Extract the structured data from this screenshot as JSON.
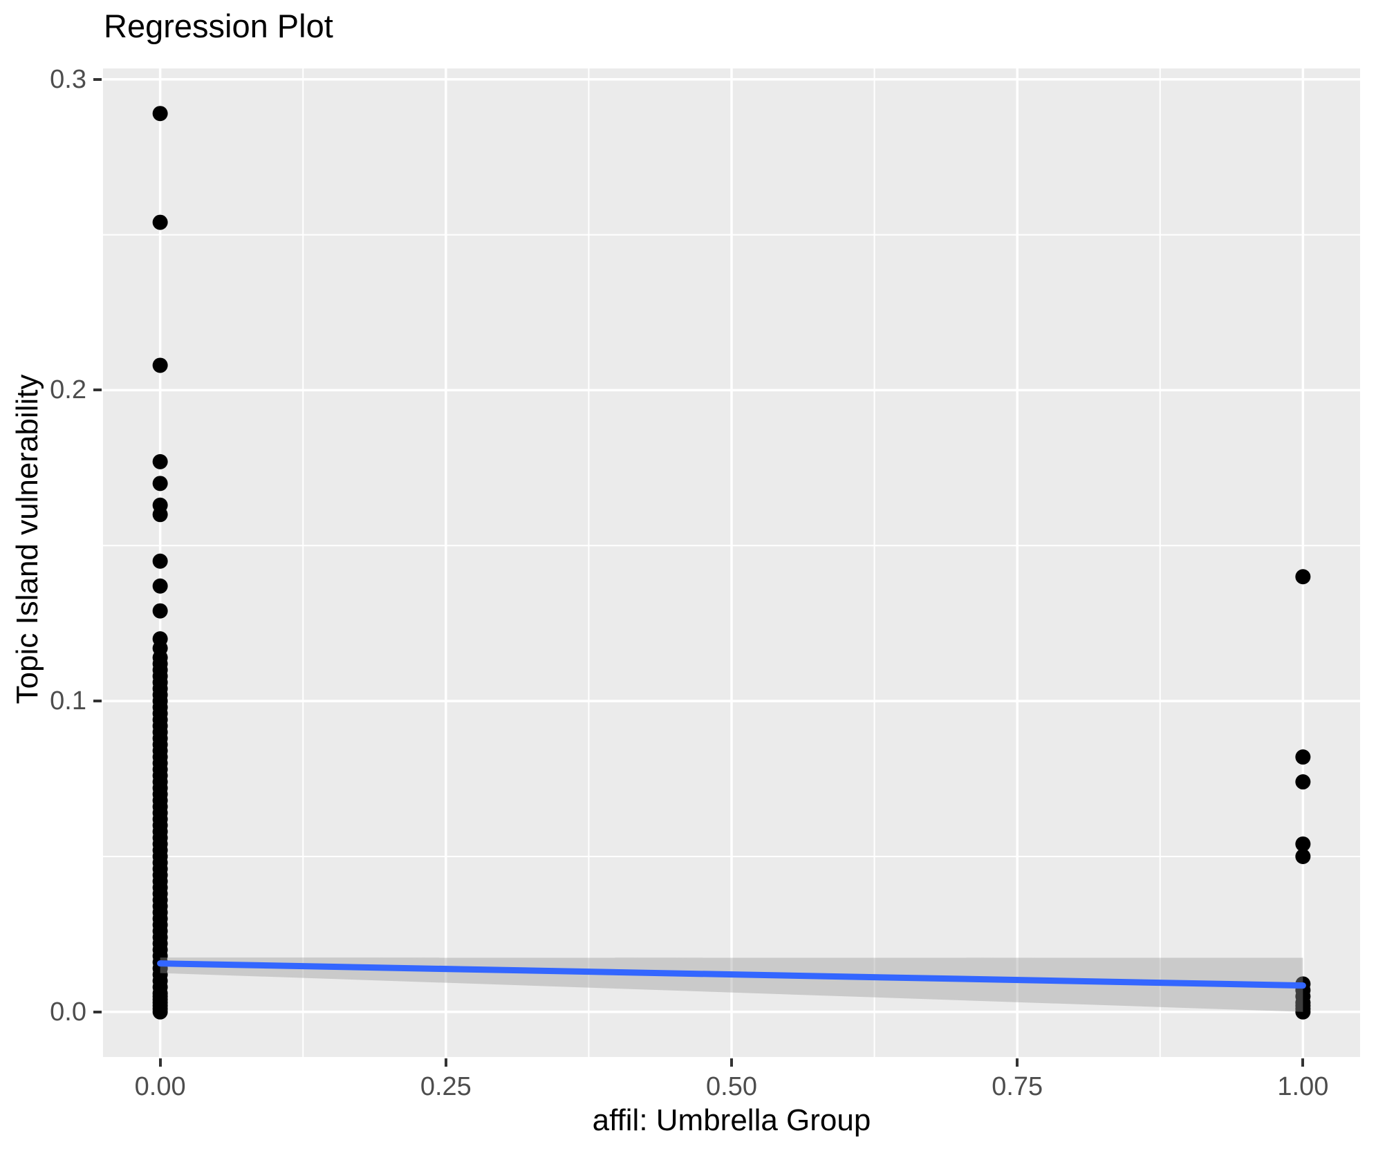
{
  "chart_data": {
    "type": "scatter",
    "title": "Regression Plot",
    "xlabel": "affil: Umbrella Group",
    "ylabel": "Topic Island vulnerability",
    "xlim": [
      -0.05,
      1.05
    ],
    "ylim": [
      -0.0145,
      0.3035
    ],
    "x_ticks": [
      0.0,
      0.25,
      0.5,
      0.75,
      1.0
    ],
    "x_tick_labels": [
      "0.00",
      "0.25",
      "0.50",
      "0.75",
      "1.00"
    ],
    "x_minor_ticks": [
      0.125,
      0.375,
      0.625,
      0.875
    ],
    "y_ticks": [
      0.0,
      0.1,
      0.2,
      0.3
    ],
    "y_tick_labels": [
      "0.0",
      "0.1",
      "0.2",
      "0.3"
    ],
    "y_minor_ticks": [
      0.05,
      0.15,
      0.25
    ],
    "grid": true,
    "legend": false,
    "series": [
      {
        "name": "observations at affil = 0",
        "x_value": 0.0,
        "y_values": [
          0.289,
          0.254,
          0.208,
          0.177,
          0.17,
          0.163,
          0.16,
          0.145,
          0.137,
          0.129,
          0.12,
          0.117,
          0.114,
          0.112,
          0.11,
          0.108,
          0.106,
          0.104,
          0.102,
          0.1,
          0.098,
          0.096,
          0.094,
          0.092,
          0.09,
          0.088,
          0.086,
          0.084,
          0.082,
          0.08,
          0.078,
          0.076,
          0.074,
          0.072,
          0.07,
          0.068,
          0.066,
          0.064,
          0.062,
          0.06,
          0.058,
          0.056,
          0.054,
          0.052,
          0.05,
          0.048,
          0.046,
          0.044,
          0.042,
          0.04,
          0.038,
          0.036,
          0.034,
          0.032,
          0.03,
          0.028,
          0.026,
          0.024,
          0.022,
          0.02,
          0.018,
          0.016,
          0.014,
          0.012,
          0.01,
          0.008,
          0.006,
          0.005,
          0.004,
          0.003,
          0.002,
          0.001,
          0.0
        ]
      },
      {
        "name": "observations at affil = 1",
        "x_value": 1.0,
        "y_values": [
          0.14,
          0.082,
          0.074,
          0.054,
          0.05,
          0.009,
          0.007,
          0.005,
          0.003,
          0.002,
          0.001,
          0.0
        ]
      }
    ],
    "regression_line": {
      "x": [
        0.0,
        1.0
      ],
      "y": [
        0.0156,
        0.0085
      ]
    },
    "confidence_band": {
      "x": [
        0.0,
        1.0
      ],
      "y_upper": [
        0.0175,
        0.0174
      ],
      "y_lower": [
        0.0125,
        0.0
      ]
    }
  },
  "style": {
    "panel_background": "#EBEBEB",
    "grid_color": "#FFFFFF",
    "point_color": "#000000",
    "line_color": "#3366FF",
    "band_color": "#999999",
    "band_alpha": 0.4,
    "tick_color": "#333333",
    "tick_label_color": "#4D4D4D",
    "text_color": "#000000"
  }
}
